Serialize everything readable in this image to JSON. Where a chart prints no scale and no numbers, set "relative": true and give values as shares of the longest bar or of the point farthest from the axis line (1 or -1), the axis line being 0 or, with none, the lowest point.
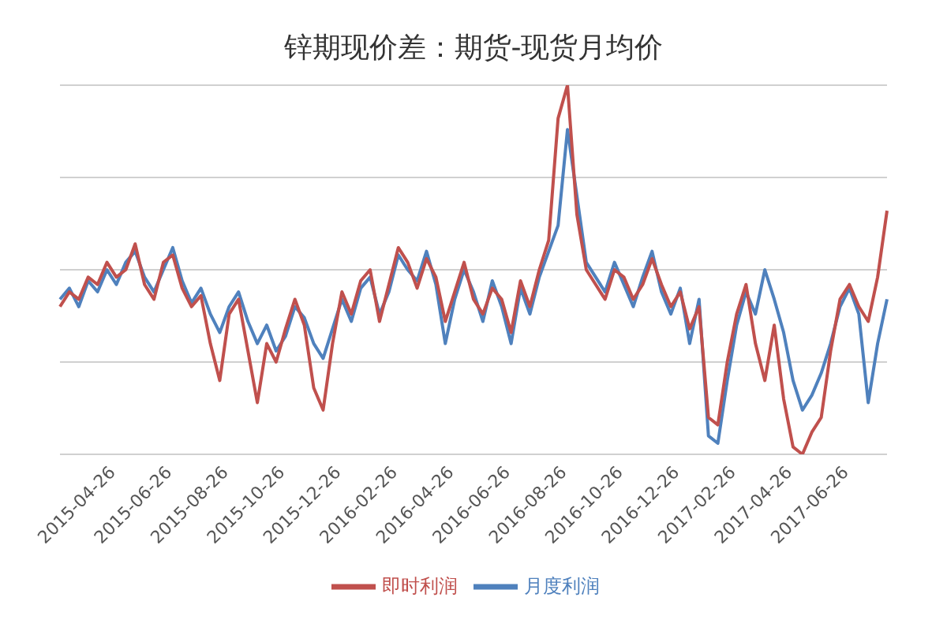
{
  "chart_data": {
    "type": "line",
    "title": "锌期现价差：期货-现货月均价",
    "relative": true,
    "grid": "y",
    "legend": "bottom",
    "marker": "none",
    "categories": [
      null,
      null,
      null,
      null,
      null,
      null,
      "2015-04-26",
      null,
      null,
      null,
      null,
      null,
      "2015-06-26",
      null,
      null,
      null,
      null,
      null,
      "2015-08-26",
      null,
      null,
      null,
      null,
      null,
      "2015-10-26",
      null,
      null,
      null,
      null,
      null,
      "2015-12-26",
      null,
      null,
      null,
      null,
      null,
      "2016-02-26",
      null,
      null,
      null,
      null,
      null,
      "2016-04-26",
      null,
      null,
      null,
      null,
      null,
      "2016-06-26",
      null,
      null,
      null,
      null,
      null,
      "2016-08-26",
      null,
      null,
      null,
      null,
      null,
      "2016-10-26",
      null,
      null,
      null,
      null,
      null,
      "2016-12-26",
      null,
      null,
      null,
      null,
      null,
      "2017-02-26",
      null,
      null,
      null,
      null,
      null,
      "2017-04-26",
      null,
      null,
      null,
      null,
      null,
      "2017-06-26",
      null,
      null,
      null,
      null
    ],
    "series": [
      {
        "name": "月度利润",
        "color": "#4f81bd",
        "values": [
          0.42,
          0.45,
          0.4,
          0.47,
          0.44,
          0.5,
          0.46,
          0.52,
          0.55,
          0.48,
          0.44,
          0.5,
          0.56,
          0.47,
          0.41,
          0.45,
          0.38,
          0.33,
          0.4,
          0.44,
          0.36,
          0.3,
          0.35,
          0.28,
          0.32,
          0.4,
          0.37,
          0.3,
          0.26,
          0.34,
          0.42,
          0.36,
          0.45,
          0.48,
          0.38,
          0.44,
          0.54,
          0.5,
          0.47,
          0.55,
          0.46,
          0.3,
          0.42,
          0.5,
          0.44,
          0.36,
          0.47,
          0.4,
          0.3,
          0.45,
          0.38,
          0.48,
          0.55,
          0.62,
          0.88,
          0.7,
          0.52,
          0.48,
          0.44,
          0.52,
          0.46,
          0.4,
          0.48,
          0.55,
          0.44,
          0.38,
          0.45,
          0.3,
          0.42,
          0.05,
          0.03,
          0.2,
          0.35,
          0.44,
          0.38,
          0.5,
          0.42,
          0.33,
          0.2,
          0.12,
          0.16,
          0.22,
          0.3,
          0.4,
          0.45,
          0.38,
          0.14,
          0.3,
          0.42
        ]
      },
      {
        "name": "即时利润",
        "color": "#c0504d",
        "values": [
          0.4,
          0.44,
          0.42,
          0.48,
          0.46,
          0.52,
          0.48,
          0.5,
          0.57,
          0.46,
          0.42,
          0.52,
          0.54,
          0.45,
          0.4,
          0.43,
          0.3,
          0.2,
          0.38,
          0.42,
          0.28,
          0.14,
          0.3,
          0.25,
          0.34,
          0.42,
          0.35,
          0.18,
          0.12,
          0.3,
          0.44,
          0.38,
          0.47,
          0.5,
          0.36,
          0.46,
          0.56,
          0.52,
          0.45,
          0.53,
          0.48,
          0.36,
          0.44,
          0.52,
          0.42,
          0.38,
          0.45,
          0.42,
          0.33,
          0.47,
          0.4,
          0.5,
          0.58,
          0.91,
          1.0,
          0.65,
          0.5,
          0.46,
          0.42,
          0.5,
          0.48,
          0.42,
          0.46,
          0.53,
          0.46,
          0.4,
          0.44,
          0.34,
          0.4,
          0.1,
          0.08,
          0.25,
          0.38,
          0.46,
          0.3,
          0.2,
          0.35,
          0.15,
          0.02,
          0.0,
          0.06,
          0.1,
          0.28,
          0.42,
          0.46,
          0.4,
          0.36,
          0.48,
          0.66
        ]
      }
    ]
  }
}
